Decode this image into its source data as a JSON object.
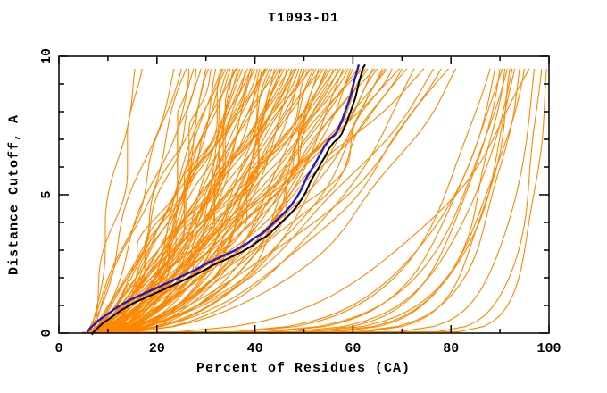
{
  "chart_data": {
    "type": "line",
    "title": "T1093-D1",
    "xlabel": "Percent of Residues (CA)",
    "ylabel": "Distance Cutoff, A",
    "xlim": [
      0,
      100
    ],
    "ylim": [
      0,
      10
    ],
    "grid": false,
    "legend": "none",
    "border": "all-four-sides",
    "ticks_direction": "inward-mirrored",
    "x_ticks_major": [
      0,
      20,
      40,
      60,
      80,
      100
    ],
    "x_ticks_minor": [
      10,
      30,
      50,
      70,
      90
    ],
    "x_tick_labels": [
      "0",
      "20",
      "40",
      "60",
      "80",
      "100"
    ],
    "y_ticks_major": [
      0,
      5,
      10
    ],
    "y_ticks_minor": [
      1,
      2,
      3,
      4,
      6,
      7,
      8,
      9
    ],
    "y_tick_labels": [
      "0",
      "5",
      "10"
    ],
    "y_tick_labels_rotated": true,
    "colors": {
      "background": "#ffffff",
      "axis": "#000000",
      "model_curves": "#ff8700",
      "reference_curve": "#1c1ccc",
      "shadow_curve": "#000000",
      "text": "#000000"
    },
    "model_curves": {
      "count": 110,
      "y_start": 0.02,
      "y_top": 9.55,
      "generator": "x(y) = start_x + (top_x - start_x) * (y/y_top)^shape + amp*sin(freq*y + phase)*sin(pi*y/y_top), monotone non-decreasing",
      "phase_step": 0.93,
      "main_band_top_x": [
        26.5,
        27.5,
        28,
        29,
        30,
        30.5,
        31,
        32,
        33,
        33.2,
        33.5,
        34,
        34.5,
        35,
        35.5,
        36,
        36.2,
        36.5,
        37,
        37.5,
        38,
        38.5,
        39,
        39.2,
        39.5,
        40,
        40.5,
        41,
        41.5,
        42,
        42.2,
        42.5,
        43,
        43.5,
        44,
        44.5,
        45,
        45.2,
        45.5,
        46,
        46.5,
        47,
        47.5,
        48,
        48.2,
        48.5,
        49,
        49.5,
        50,
        50.5,
        51,
        51.5,
        52,
        52.5,
        53,
        53.5,
        54,
        54.5,
        55,
        55.5,
        56,
        56.5,
        57,
        57.5,
        58,
        58.5,
        59,
        59.5,
        60,
        61,
        61.5,
        62,
        62.5,
        63,
        64,
        64.5,
        65,
        66,
        66.5,
        67,
        68,
        69.5,
        70,
        71,
        72.5,
        74.5
      ],
      "style_cycles": {
        "start_x": [
          5.2,
          6.8,
          7.6,
          5.6,
          8.2,
          6.1,
          7.1,
          4.8,
          8.6,
          6.4
        ],
        "shape": [
          0.38,
          0.55,
          0.72,
          0.45,
          0.85,
          0.5,
          0.65,
          0.4,
          0.78,
          0.6
        ],
        "amp": [
          0.8,
          1.7,
          2.4,
          1.1,
          1.9,
          0.6,
          2.7,
          1.3,
          2.1,
          0.9
        ],
        "freq": [
          0.7,
          1.1,
          1.5,
          0.9,
          1.3,
          1.7,
          0.8,
          1.2,
          1.6,
          1.0
        ]
      },
      "special_params_format": [
        "start_x",
        "top_x",
        "shape",
        "amp",
        "freq",
        "phase"
      ],
      "special_params": [
        [
          6.5,
          15.5,
          1.0,
          1.2,
          0.9,
          0.3
        ],
        [
          7.0,
          17.0,
          1.05,
          1.4,
          1.1,
          2.1
        ],
        [
          6.0,
          23.5,
          0.9,
          1.5,
          0.8,
          1.0
        ],
        [
          5.5,
          25.0,
          0.85,
          1.0,
          1.2,
          2.6
        ],
        [
          7.0,
          26.0,
          0.95,
          1.8,
          0.7,
          4.0
        ],
        [
          6.0,
          76.5,
          0.5,
          1.5,
          0.9,
          0.5
        ],
        [
          7.0,
          78.0,
          0.45,
          1.0,
          1.2,
          2.0
        ],
        [
          5.5,
          79.5,
          0.55,
          1.8,
          0.8,
          3.5
        ],
        [
          6.5,
          81.0,
          0.4,
          1.2,
          1.1,
          5.0
        ],
        [
          6.0,
          88.0,
          0.18,
          0.8,
          0.6,
          0.4
        ],
        [
          7.0,
          89.0,
          0.15,
          0.6,
          0.8,
          1.5
        ],
        [
          5.5,
          90.0,
          0.12,
          0.9,
          0.5,
          2.8
        ],
        [
          6.5,
          90.5,
          0.2,
          0.5,
          0.7,
          4.1
        ],
        [
          7.5,
          91.0,
          0.1,
          0.7,
          0.9,
          5.3
        ],
        [
          5.0,
          91.5,
          0.16,
          0.6,
          0.6,
          0.9
        ],
        [
          6.0,
          92.0,
          0.08,
          0.8,
          0.8,
          2.2
        ],
        [
          7.0,
          92.5,
          0.14,
          0.5,
          0.5,
          3.6
        ],
        [
          6.5,
          93.0,
          0.11,
          0.7,
          0.7,
          4.9
        ],
        [
          5.5,
          94.0,
          0.09,
          0.6,
          0.9,
          0.2
        ],
        [
          8.0,
          95.0,
          0.13,
          0.8,
          0.6,
          1.7
        ],
        [
          6.0,
          96.0,
          0.3,
          1.2,
          0.8,
          3.1
        ],
        [
          7.0,
          97.0,
          0.07,
          0.5,
          0.5,
          4.4
        ],
        [
          6.5,
          98.5,
          0.05,
          0.6,
          0.7,
          5.7
        ],
        [
          5.8,
          99.5,
          0.04,
          0.4,
          0.9,
          1.2
        ]
      ]
    },
    "reference_curve": {
      "name": "reference-model",
      "color": "#1c1ccc",
      "width": 2.4,
      "points": [
        [
          5.8,
          0.05
        ],
        [
          6.5,
          0.2
        ],
        [
          8,
          0.45
        ],
        [
          10,
          0.7
        ],
        [
          12,
          0.95
        ],
        [
          14.5,
          1.2
        ],
        [
          17,
          1.4
        ],
        [
          19.5,
          1.6
        ],
        [
          22,
          1.8
        ],
        [
          25,
          2.05
        ],
        [
          28,
          2.3
        ],
        [
          30.5,
          2.55
        ],
        [
          33,
          2.75
        ],
        [
          36,
          3.0
        ],
        [
          38.5,
          3.25
        ],
        [
          40,
          3.45
        ],
        [
          41.5,
          3.6
        ],
        [
          43,
          3.85
        ],
        [
          44.5,
          4.1
        ],
        [
          46,
          4.35
        ],
        [
          47.3,
          4.6
        ],
        [
          48.5,
          4.9
        ],
        [
          49.5,
          5.2
        ],
        [
          50.5,
          5.6
        ],
        [
          51.5,
          5.9
        ],
        [
          52.5,
          6.2
        ],
        [
          53.3,
          6.45
        ],
        [
          54.2,
          6.75
        ],
        [
          55.2,
          7.0
        ],
        [
          56.2,
          7.15
        ],
        [
          56.8,
          7.3
        ],
        [
          57.3,
          7.5
        ],
        [
          57.9,
          7.75
        ],
        [
          58.4,
          8.0
        ],
        [
          59,
          8.3
        ],
        [
          59.6,
          8.6
        ],
        [
          60,
          8.9
        ],
        [
          60.4,
          9.2
        ],
        [
          60.8,
          9.45
        ],
        [
          61.2,
          9.7
        ]
      ]
    },
    "shadow_curve": {
      "name": "reference-model-shadow",
      "color": "#000000",
      "width": 2.0,
      "offset_dx": 0.9,
      "offset_dy": -0.1,
      "extra_top_point": [
        62.5,
        9.7
      ]
    }
  }
}
